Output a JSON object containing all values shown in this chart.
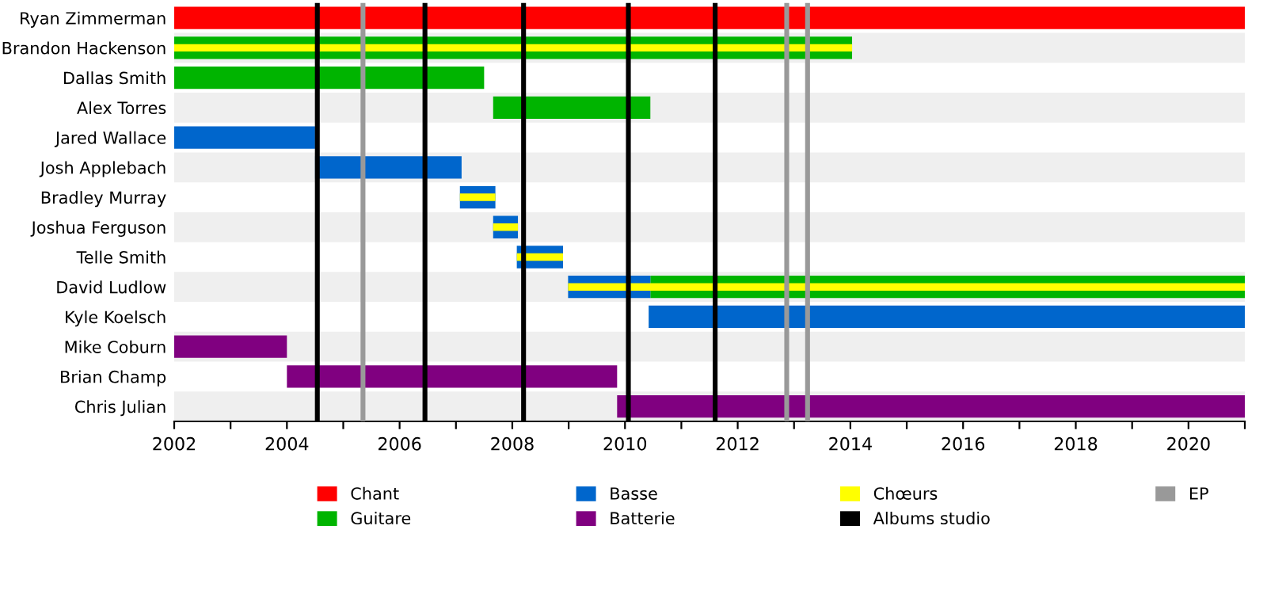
{
  "chart_data": {
    "type": "bar",
    "orientation": "horizontal",
    "categories": [
      "Ryan Zimmerman",
      "Brandon Hackenson",
      "Dallas Smith",
      "Alex Torres",
      "Jared Wallace",
      "Josh Applebach",
      "Bradley Murray",
      "Joshua Ferguson",
      "Telle Smith",
      "David Ludlow",
      "Kyle Koelsch",
      "Mike Coburn",
      "Brian Champ",
      "Chris Julian"
    ],
    "series": [
      {
        "name": "Chant",
        "color": "#ff0000",
        "base": [
          2002,
          null,
          null,
          null,
          null,
          null,
          null,
          null,
          null,
          null,
          null,
          null,
          null,
          null
        ],
        "values": [
          19,
          null,
          null,
          null,
          null,
          null,
          null,
          null,
          null,
          null,
          null,
          null,
          null,
          null
        ]
      },
      {
        "name": "Guitare",
        "color": "#00b400",
        "base": [
          null,
          2002,
          2002,
          2007.66,
          null,
          null,
          null,
          null,
          null,
          2010.45,
          null,
          null,
          null,
          null
        ],
        "values": [
          null,
          12.03,
          5.5,
          2.79,
          null,
          null,
          null,
          null,
          null,
          10.55,
          null,
          null,
          null,
          null
        ]
      },
      {
        "name": "Basse",
        "color": "#0066cc",
        "base": [
          null,
          null,
          null,
          null,
          2002,
          2004.5,
          2007.07,
          2007.66,
          2008.08,
          2008.99,
          2010.42,
          null,
          null,
          null
        ],
        "values": [
          null,
          null,
          null,
          null,
          2.5,
          2.6,
          0.63,
          0.44,
          0.82,
          1.46,
          10.58,
          null,
          null,
          null
        ]
      },
      {
        "name": "Batterie",
        "color": "#800080",
        "base": [
          null,
          null,
          null,
          null,
          null,
          null,
          null,
          null,
          null,
          null,
          null,
          2002,
          2004.0,
          2009.86
        ],
        "values": [
          null,
          null,
          null,
          null,
          null,
          null,
          null,
          null,
          null,
          null,
          null,
          2.0,
          5.86,
          11.14
        ]
      },
      {
        "name": "Chœurs",
        "color": "#ffff00",
        "base": [
          null,
          2002,
          null,
          null,
          null,
          null,
          2007.07,
          2007.66,
          2008.08,
          2008.99,
          null,
          null,
          null,
          null
        ],
        "values": [
          null,
          12.03,
          null,
          null,
          null,
          null,
          0.63,
          0.44,
          0.82,
          12.01,
          null,
          null,
          null,
          null
        ]
      }
    ],
    "ref_lines": [
      {
        "axis": "x",
        "value": 2004.54,
        "label": "Albums studio",
        "color": "#000000"
      },
      {
        "axis": "x",
        "value": 2006.45,
        "color": "#000000"
      },
      {
        "axis": "x",
        "value": 2008.2,
        "color": "#000000"
      },
      {
        "axis": "x",
        "value": 2010.06,
        "color": "#000000"
      },
      {
        "axis": "x",
        "value": 2011.6,
        "color": "#000000"
      },
      {
        "axis": "x",
        "value": 2005.35,
        "label": "EP",
        "color": "#999999"
      },
      {
        "axis": "x",
        "value": 2012.87,
        "color": "#999999"
      },
      {
        "axis": "x",
        "value": 2013.24,
        "color": "#999999"
      }
    ],
    "xlim": [
      2002,
      2021
    ],
    "xticks": [
      2002,
      {
        "value": 2003,
        "label": null
      },
      2004,
      {
        "value": 2005,
        "label": null
      },
      2006,
      {
        "value": 2007,
        "label": null
      },
      2008,
      {
        "value": 2009,
        "label": null
      },
      2010,
      {
        "value": 2011,
        "label": null
      },
      2012,
      {
        "value": 2013,
        "label": null
      },
      2014,
      {
        "value": 2015,
        "label": null
      },
      2016,
      {
        "value": 2017,
        "label": null
      },
      2018,
      {
        "value": 2019,
        "label": null
      },
      2020,
      {
        "value": 2021,
        "label": null
      }
    ],
    "legend": "bottom",
    "grid": false
  }
}
